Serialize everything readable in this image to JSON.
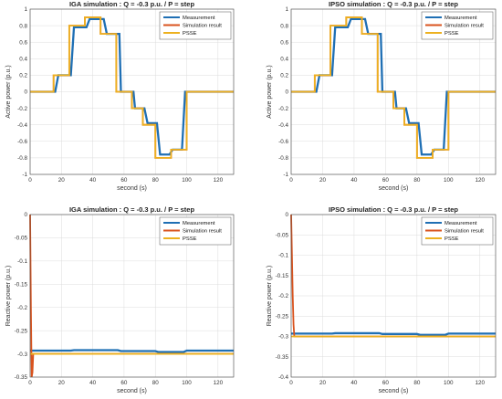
{
  "chart_data": [
    {
      "type": "line",
      "title": "IGA simulation : Q = -0.3 p.u. / P = step",
      "xlabel": "second (s)",
      "ylabel": "Active power (p.u.)",
      "xlim": [
        0,
        130
      ],
      "ylim": [
        -1,
        1
      ],
      "xticks": [
        0,
        20,
        40,
        60,
        80,
        100,
        120
      ],
      "yticks": [
        1,
        0.8,
        0.6,
        0.4,
        0.2,
        0,
        -0.2,
        -0.4,
        -0.6,
        -0.8,
        -1
      ],
      "grid": true,
      "legend": "top-right",
      "series": [
        {
          "name": "Measurement",
          "color": "#1f6fb4",
          "x": [
            0,
            16,
            18,
            26,
            28,
            36,
            38,
            47,
            49,
            57,
            58,
            66,
            67,
            73,
            75,
            81,
            83,
            89,
            91,
            97,
            99,
            130
          ],
          "y": [
            0,
            0,
            0.2,
            0.2,
            0.78,
            0.78,
            0.88,
            0.88,
            0.7,
            0.7,
            0,
            0,
            -0.2,
            -0.2,
            -0.38,
            -0.38,
            -0.76,
            -0.76,
            -0.7,
            -0.7,
            0,
            0
          ]
        },
        {
          "name": "Simulation result",
          "color": "#d9531e",
          "x": [
            0,
            15,
            15,
            25,
            25,
            35,
            35,
            45,
            45,
            55,
            55,
            65,
            65,
            72,
            72,
            80,
            80,
            90,
            90,
            100,
            100,
            130
          ],
          "y": [
            0,
            0,
            0.2,
            0.2,
            0.8,
            0.8,
            0.9,
            0.9,
            0.7,
            0.7,
            0,
            0,
            -0.2,
            -0.2,
            -0.4,
            -0.4,
            -0.8,
            -0.8,
            -0.7,
            -0.7,
            0,
            0
          ]
        },
        {
          "name": "PSSE",
          "color": "#edb120",
          "x": [
            0,
            15,
            15,
            25,
            25,
            35,
            35,
            45,
            45,
            55,
            55,
            65,
            65,
            72,
            72,
            80,
            80,
            90,
            90,
            100,
            100,
            130
          ],
          "y": [
            0,
            0,
            0.2,
            0.2,
            0.8,
            0.8,
            0.9,
            0.9,
            0.7,
            0.7,
            0,
            0,
            -0.2,
            -0.2,
            -0.4,
            -0.4,
            -0.8,
            -0.8,
            -0.7,
            -0.7,
            0,
            0
          ]
        }
      ]
    },
    {
      "type": "line",
      "title": "IPSO simulation : Q = -0.3 p.u. / P = step",
      "xlabel": "second (s)",
      "ylabel": "Active power (p.u.)",
      "xlim": [
        0,
        130
      ],
      "ylim": [
        -1,
        1
      ],
      "xticks": [
        0,
        20,
        40,
        60,
        80,
        100,
        120
      ],
      "yticks": [
        1,
        0.8,
        0.6,
        0.4,
        0.2,
        0,
        -0.2,
        -0.4,
        -0.6,
        -0.8,
        -1
      ],
      "grid": true,
      "legend": "top-right",
      "series": [
        {
          "name": "Measurement",
          "color": "#1f6fb4",
          "x": [
            0,
            16,
            18,
            26,
            28,
            36,
            38,
            47,
            49,
            57,
            58,
            66,
            67,
            73,
            75,
            81,
            83,
            89,
            91,
            97,
            99,
            130
          ],
          "y": [
            0,
            0,
            0.2,
            0.2,
            0.78,
            0.78,
            0.88,
            0.88,
            0.7,
            0.7,
            0,
            0,
            -0.2,
            -0.2,
            -0.38,
            -0.38,
            -0.76,
            -0.76,
            -0.7,
            -0.7,
            0,
            0
          ]
        },
        {
          "name": "Simulation result",
          "color": "#d9531e",
          "x": [
            0,
            15,
            15,
            25,
            25,
            35,
            35,
            45,
            45,
            55,
            55,
            65,
            65,
            72,
            72,
            80,
            80,
            90,
            90,
            100,
            100,
            130
          ],
          "y": [
            0,
            0,
            0.2,
            0.2,
            0.8,
            0.8,
            0.9,
            0.9,
            0.7,
            0.7,
            0,
            0,
            -0.2,
            -0.2,
            -0.4,
            -0.4,
            -0.8,
            -0.8,
            -0.7,
            -0.7,
            0,
            0
          ]
        },
        {
          "name": "PSSE",
          "color": "#edb120",
          "x": [
            0,
            15,
            15,
            25,
            25,
            35,
            35,
            45,
            45,
            55,
            55,
            65,
            65,
            72,
            72,
            80,
            80,
            90,
            90,
            100,
            100,
            130
          ],
          "y": [
            0,
            0,
            0.2,
            0.2,
            0.8,
            0.8,
            0.9,
            0.9,
            0.7,
            0.7,
            0,
            0,
            -0.2,
            -0.2,
            -0.4,
            -0.4,
            -0.8,
            -0.8,
            -0.7,
            -0.7,
            0,
            0
          ]
        }
      ]
    },
    {
      "type": "line",
      "title": "IGA simulation : Q = -0.3 p.u. / P = step",
      "xlabel": "second (s)",
      "ylabel": "Reactive power (p.u.)",
      "xlim": [
        0,
        130
      ],
      "ylim": [
        -0.35,
        0
      ],
      "xticks": [
        0,
        20,
        40,
        60,
        80,
        100,
        120
      ],
      "yticks": [
        0,
        -0.05,
        -0.1,
        -0.15,
        -0.2,
        -0.25,
        -0.3,
        -0.35
      ],
      "grid": true,
      "legend": "top-right",
      "series": [
        {
          "name": "Measurement",
          "color": "#1f6fb4",
          "x": [
            0,
            26,
            28,
            56,
            58,
            80,
            82,
            98,
            100,
            130
          ],
          "y": [
            -0.293,
            -0.293,
            -0.292,
            -0.292,
            -0.294,
            -0.294,
            -0.296,
            -0.296,
            -0.293,
            -0.293
          ]
        },
        {
          "name": "Simulation result",
          "color": "#d9531e",
          "x": [
            0,
            0.5,
            1,
            1.5,
            2,
            3,
            130
          ],
          "y": [
            0,
            -0.2,
            -0.35,
            -0.34,
            -0.3,
            -0.3,
            -0.3
          ]
        },
        {
          "name": "PSSE",
          "color": "#edb120",
          "x": [
            0,
            130
          ],
          "y": [
            -0.3,
            -0.3
          ]
        }
      ]
    },
    {
      "type": "line",
      "title": "IPSO simulation : Q = -0.3 p.u. / P = step",
      "xlabel": "second (s)",
      "ylabel": "Reactive power (p.u.)",
      "xlim": [
        0,
        130
      ],
      "ylim": [
        -0.4,
        0
      ],
      "xticks": [
        0,
        20,
        40,
        60,
        80,
        100,
        120
      ],
      "yticks": [
        0,
        -0.05,
        -0.1,
        -0.15,
        -0.2,
        -0.25,
        -0.3,
        -0.35,
        -0.4
      ],
      "grid": true,
      "legend": "top-right",
      "series": [
        {
          "name": "Measurement",
          "color": "#1f6fb4",
          "x": [
            0,
            26,
            28,
            56,
            58,
            80,
            82,
            98,
            100,
            130
          ],
          "y": [
            -0.293,
            -0.293,
            -0.292,
            -0.292,
            -0.294,
            -0.294,
            -0.296,
            -0.296,
            -0.293,
            -0.293
          ]
        },
        {
          "name": "Simulation result",
          "color": "#d9531e",
          "x": [
            0,
            0.5,
            1,
            1.5,
            2,
            3,
            130
          ],
          "y": [
            0,
            -0.1,
            -0.2,
            -0.27,
            -0.3,
            -0.3,
            -0.3
          ]
        },
        {
          "name": "PSSE",
          "color": "#edb120",
          "x": [
            0,
            130
          ],
          "y": [
            -0.3,
            -0.3
          ]
        }
      ]
    }
  ]
}
